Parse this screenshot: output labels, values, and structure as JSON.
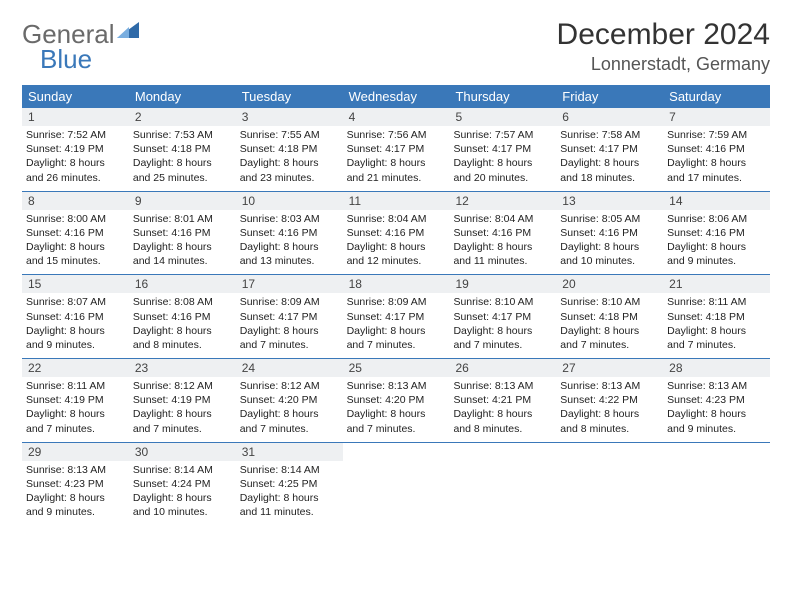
{
  "brand": {
    "part1": "General",
    "part2": "Blue"
  },
  "title": "December 2024",
  "location": "Lonnerstadt, Germany",
  "colors": {
    "accent": "#3a78b9",
    "dayHeaderBg": "#eef0f2",
    "text": "#222222",
    "bg": "#ffffff"
  },
  "weekdays": [
    "Sunday",
    "Monday",
    "Tuesday",
    "Wednesday",
    "Thursday",
    "Friday",
    "Saturday"
  ],
  "weeks": [
    [
      {
        "n": "1",
        "sr": "7:52 AM",
        "ss": "4:19 PM",
        "dl": "8 hours and 26 minutes."
      },
      {
        "n": "2",
        "sr": "7:53 AM",
        "ss": "4:18 PM",
        "dl": "8 hours and 25 minutes."
      },
      {
        "n": "3",
        "sr": "7:55 AM",
        "ss": "4:18 PM",
        "dl": "8 hours and 23 minutes."
      },
      {
        "n": "4",
        "sr": "7:56 AM",
        "ss": "4:17 PM",
        "dl": "8 hours and 21 minutes."
      },
      {
        "n": "5",
        "sr": "7:57 AM",
        "ss": "4:17 PM",
        "dl": "8 hours and 20 minutes."
      },
      {
        "n": "6",
        "sr": "7:58 AM",
        "ss": "4:17 PM",
        "dl": "8 hours and 18 minutes."
      },
      {
        "n": "7",
        "sr": "7:59 AM",
        "ss": "4:16 PM",
        "dl": "8 hours and 17 minutes."
      }
    ],
    [
      {
        "n": "8",
        "sr": "8:00 AM",
        "ss": "4:16 PM",
        "dl": "8 hours and 15 minutes."
      },
      {
        "n": "9",
        "sr": "8:01 AM",
        "ss": "4:16 PM",
        "dl": "8 hours and 14 minutes."
      },
      {
        "n": "10",
        "sr": "8:03 AM",
        "ss": "4:16 PM",
        "dl": "8 hours and 13 minutes."
      },
      {
        "n": "11",
        "sr": "8:04 AM",
        "ss": "4:16 PM",
        "dl": "8 hours and 12 minutes."
      },
      {
        "n": "12",
        "sr": "8:04 AM",
        "ss": "4:16 PM",
        "dl": "8 hours and 11 minutes."
      },
      {
        "n": "13",
        "sr": "8:05 AM",
        "ss": "4:16 PM",
        "dl": "8 hours and 10 minutes."
      },
      {
        "n": "14",
        "sr": "8:06 AM",
        "ss": "4:16 PM",
        "dl": "8 hours and 9 minutes."
      }
    ],
    [
      {
        "n": "15",
        "sr": "8:07 AM",
        "ss": "4:16 PM",
        "dl": "8 hours and 9 minutes."
      },
      {
        "n": "16",
        "sr": "8:08 AM",
        "ss": "4:16 PM",
        "dl": "8 hours and 8 minutes."
      },
      {
        "n": "17",
        "sr": "8:09 AM",
        "ss": "4:17 PM",
        "dl": "8 hours and 7 minutes."
      },
      {
        "n": "18",
        "sr": "8:09 AM",
        "ss": "4:17 PM",
        "dl": "8 hours and 7 minutes."
      },
      {
        "n": "19",
        "sr": "8:10 AM",
        "ss": "4:17 PM",
        "dl": "8 hours and 7 minutes."
      },
      {
        "n": "20",
        "sr": "8:10 AM",
        "ss": "4:18 PM",
        "dl": "8 hours and 7 minutes."
      },
      {
        "n": "21",
        "sr": "8:11 AM",
        "ss": "4:18 PM",
        "dl": "8 hours and 7 minutes."
      }
    ],
    [
      {
        "n": "22",
        "sr": "8:11 AM",
        "ss": "4:19 PM",
        "dl": "8 hours and 7 minutes."
      },
      {
        "n": "23",
        "sr": "8:12 AM",
        "ss": "4:19 PM",
        "dl": "8 hours and 7 minutes."
      },
      {
        "n": "24",
        "sr": "8:12 AM",
        "ss": "4:20 PM",
        "dl": "8 hours and 7 minutes."
      },
      {
        "n": "25",
        "sr": "8:13 AM",
        "ss": "4:20 PM",
        "dl": "8 hours and 7 minutes."
      },
      {
        "n": "26",
        "sr": "8:13 AM",
        "ss": "4:21 PM",
        "dl": "8 hours and 8 minutes."
      },
      {
        "n": "27",
        "sr": "8:13 AM",
        "ss": "4:22 PM",
        "dl": "8 hours and 8 minutes."
      },
      {
        "n": "28",
        "sr": "8:13 AM",
        "ss": "4:23 PM",
        "dl": "8 hours and 9 minutes."
      }
    ],
    [
      {
        "n": "29",
        "sr": "8:13 AM",
        "ss": "4:23 PM",
        "dl": "8 hours and 9 minutes."
      },
      {
        "n": "30",
        "sr": "8:14 AM",
        "ss": "4:24 PM",
        "dl": "8 hours and 10 minutes."
      },
      {
        "n": "31",
        "sr": "8:14 AM",
        "ss": "4:25 PM",
        "dl": "8 hours and 11 minutes."
      },
      null,
      null,
      null,
      null
    ]
  ],
  "labels": {
    "sunrise": "Sunrise:",
    "sunset": "Sunset:",
    "daylight": "Daylight:"
  }
}
